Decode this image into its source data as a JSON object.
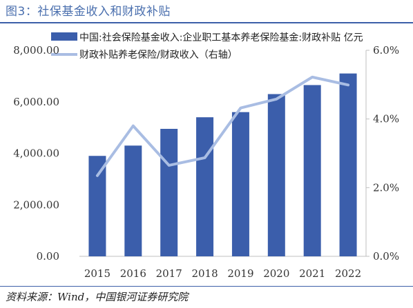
{
  "header": {
    "title": "图3：社保基金收入和财政补贴"
  },
  "footer": {
    "source": "资料来源：Wind，中国银河证券研究院"
  },
  "colors": {
    "bar": "#3b5eab",
    "line": "#a9bde3",
    "title": "#4a6fae",
    "rule": "#3b5ea8"
  },
  "chart_data": {
    "type": "bar",
    "categories": [
      "2015",
      "2016",
      "2017",
      "2018",
      "2019",
      "2020",
      "2021",
      "2022"
    ],
    "series": [
      {
        "name": "中国:社会保险基金收入:企业职工基本养老保险基金:财政补贴 亿元",
        "type": "bar",
        "axis": "left",
        "values": [
          3900,
          4300,
          4950,
          5400,
          5600,
          6300,
          6650,
          7100
        ]
      },
      {
        "name": "财政补贴养老保险/财政收入（右轴）",
        "type": "line",
        "axis": "right",
        "values": [
          0.0235,
          0.038,
          0.0265,
          0.0287,
          0.0432,
          0.0458,
          0.0522,
          0.0499
        ]
      }
    ],
    "ylim_left": [
      0,
      8000
    ],
    "yticks_left": [
      "0.00",
      "2,000.00",
      "4,000.00",
      "6,000.00",
      "8,000.00"
    ],
    "ylim_right": [
      0,
      0.06
    ],
    "yticks_right": [
      "0.0%",
      "2.0%",
      "4.0%",
      "6.0%"
    ],
    "grid": false,
    "legend_position": "top"
  }
}
